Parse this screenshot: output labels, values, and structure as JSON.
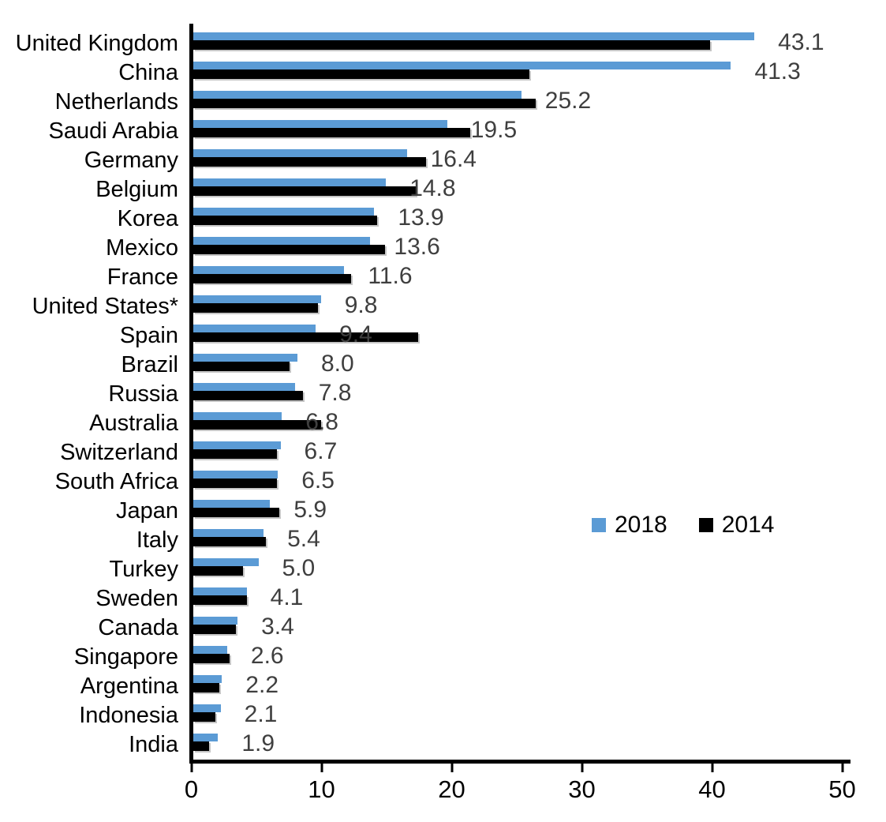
{
  "chart_data": {
    "type": "bar",
    "orientation": "horizontal",
    "title": "",
    "xlabel": "",
    "ylabel": "",
    "xlim": [
      0,
      50
    ],
    "x_ticks": [
      "0",
      "10",
      "20",
      "30",
      "40",
      "50"
    ],
    "grid": false,
    "categories": [
      "United Kingdom",
      "China",
      "Netherlands",
      "Saudi Arabia",
      "Germany",
      "Belgium",
      "Korea",
      "Mexico",
      "France",
      "United States*",
      "Spain",
      "Brazil",
      "Russia",
      "Australia",
      "Switzerland",
      "South Africa",
      "Japan",
      "Italy",
      "Turkey",
      "Sweden",
      "Canada",
      "Singapore",
      "Argentina",
      "Indonesia",
      "India"
    ],
    "series": [
      {
        "name": "2018",
        "color": "#5B9BD5",
        "values": [
          43.1,
          41.3,
          25.2,
          19.5,
          16.4,
          14.8,
          13.9,
          13.6,
          11.6,
          9.8,
          9.4,
          8.0,
          7.8,
          6.8,
          6.7,
          6.5,
          5.9,
          5.4,
          5.0,
          4.1,
          3.4,
          2.6,
          2.2,
          2.1,
          1.9
        ],
        "labels_shown": true
      },
      {
        "name": "2014",
        "color": "#000000",
        "values": [
          39.7,
          25.8,
          26.3,
          21.3,
          17.9,
          17.1,
          14.1,
          14.7,
          12.1,
          9.6,
          17.3,
          7.4,
          8.4,
          9.8,
          6.4,
          6.4,
          6.6,
          5.6,
          3.8,
          4.1,
          3.3,
          2.8,
          2.0,
          1.7,
          1.2
        ],
        "labels_shown": false,
        "estimated": true
      }
    ],
    "data_labels": [
      "43.1",
      "41.3",
      "25.2",
      "19.5",
      "16.4",
      "14.8",
      "13.9",
      "13.6",
      "11.6",
      "9.8",
      "9.4",
      "8.0",
      "7.8",
      "6.8",
      "6.7",
      "6.5",
      "5.9",
      "5.4",
      "5.0",
      "4.1",
      "3.4",
      "2.6",
      "2.2",
      "2.1",
      "1.9"
    ],
    "data_label_color": "#3f3f3f",
    "axis_color": "#000000",
    "legend": {
      "position": "middle-right",
      "entries": [
        {
          "label": "2018",
          "color": "#5B9BD5"
        },
        {
          "label": "2014",
          "color": "#000000"
        }
      ]
    }
  }
}
